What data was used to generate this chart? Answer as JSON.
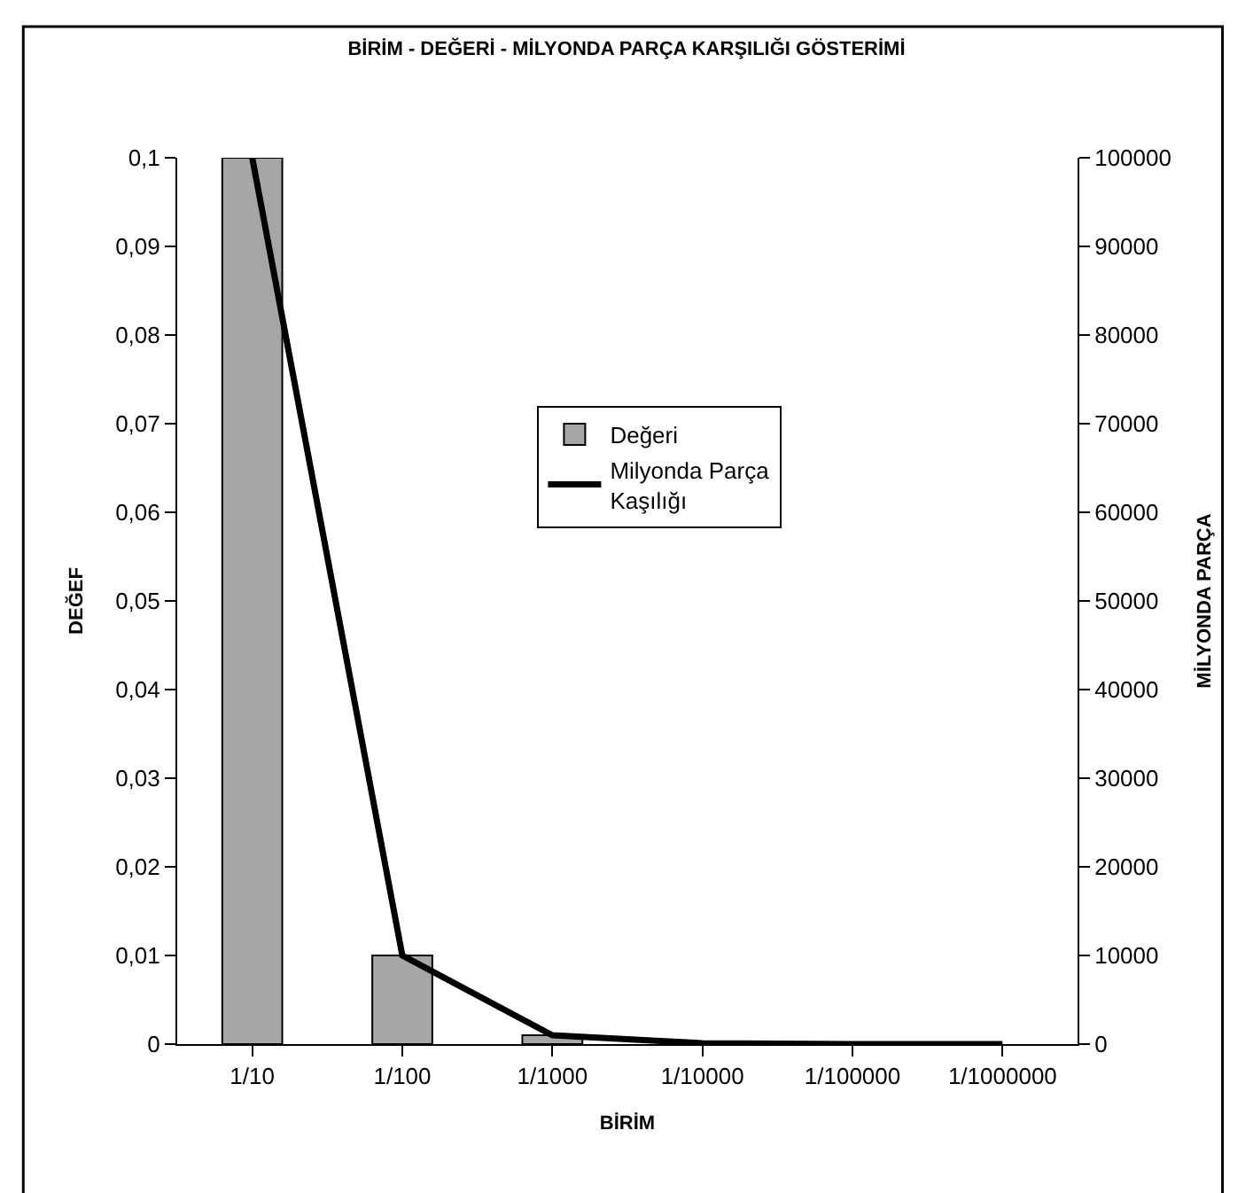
{
  "chart_data": {
    "type": "bar",
    "title": "BİRİM - DEĞERİ - MİLYONDA PARÇA KARŞILIĞI GÖSTERİMİ",
    "xlabel": "BİRİM",
    "ylabel": "DEĞEF",
    "y2label": "MİLYONDA PARÇA",
    "categories": [
      "1/10",
      "1/100",
      "1/1000",
      "1/10000",
      "1/100000",
      "1/1000000"
    ],
    "series": [
      {
        "name": "Değeri",
        "color": "#a6a6a6",
        "values": [
          0.1,
          0.01,
          0.001,
          0.0001,
          null,
          null
        ]
      },
      {
        "name": "Milyonda Parça\nKaşılığı",
        "type": "line",
        "axis": "y2",
        "color": "#000000",
        "values": [
          100000,
          10000,
          1000,
          100,
          0,
          0
        ]
      }
    ],
    "ylim": [
      0,
      0.1
    ],
    "yticks": [
      0,
      {
        "value": 0.01,
        "label": "0,01"
      },
      {
        "value": 0.02,
        "label": "0,02"
      },
      {
        "value": 0.03,
        "label": "0,03"
      },
      {
        "value": 0.04,
        "label": "0,04"
      },
      {
        "value": 0.05,
        "label": "0,05"
      },
      {
        "value": 0.06,
        "label": "0,06"
      },
      {
        "value": 0.07,
        "label": "0,07"
      },
      {
        "value": 0.08,
        "label": "0,08"
      },
      {
        "value": 0.09,
        "label": "0,09"
      },
      {
        "value": 0.1,
        "label": "0,1"
      }
    ],
    "y2lim": [
      0,
      100000
    ],
    "y2ticks": [
      0,
      10000,
      20000,
      30000,
      40000,
      50000,
      60000,
      70000,
      80000,
      90000,
      100000
    ],
    "legend": "top right",
    "marker": "none",
    "line_style": "solid"
  }
}
